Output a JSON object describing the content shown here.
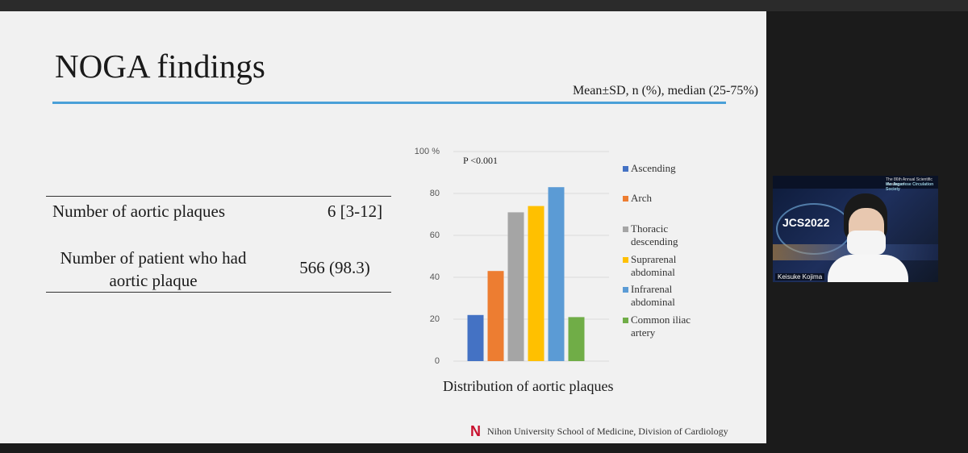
{
  "slide": {
    "title": "NOGA findings",
    "subtitle": "Mean±SD, n (%), median (25-75%)",
    "table": {
      "rows": [
        [
          "Number of aortic plaques",
          "6 [3-12]"
        ],
        [
          "Number of patient who had aortic plaque",
          "566 (98.3)"
        ]
      ]
    },
    "chart": {
      "type": "bar",
      "annotation": "P <0.001",
      "caption": "Distribution of aortic plaques",
      "categories": [
        "Ascending",
        "Arch",
        "Thoracic descending",
        "Suprarenal abdominal",
        "Infrarenal abdominal",
        "Common iliac artery"
      ],
      "values": [
        22,
        43,
        71,
        74,
        83,
        21
      ],
      "colors": [
        "#4472c4",
        "#ed7d31",
        "#a5a5a5",
        "#ffc000",
        "#5b9bd5",
        "#70ad47"
      ],
      "ylim": [
        0,
        100
      ],
      "yticks": [
        0,
        20,
        40,
        60,
        80,
        {
          "value": 100,
          "label": "100 %"
        }
      ],
      "grid": true
    },
    "footer": "Nihon University School of Medicine, Division of Cardiology"
  },
  "video": {
    "banner_line1": "The 86th Annual Scientific Meeting of",
    "banner_line2": "the Japanese Circulation Society",
    "logo": "JCS2022",
    "name": "Keisuke Kojima"
  }
}
